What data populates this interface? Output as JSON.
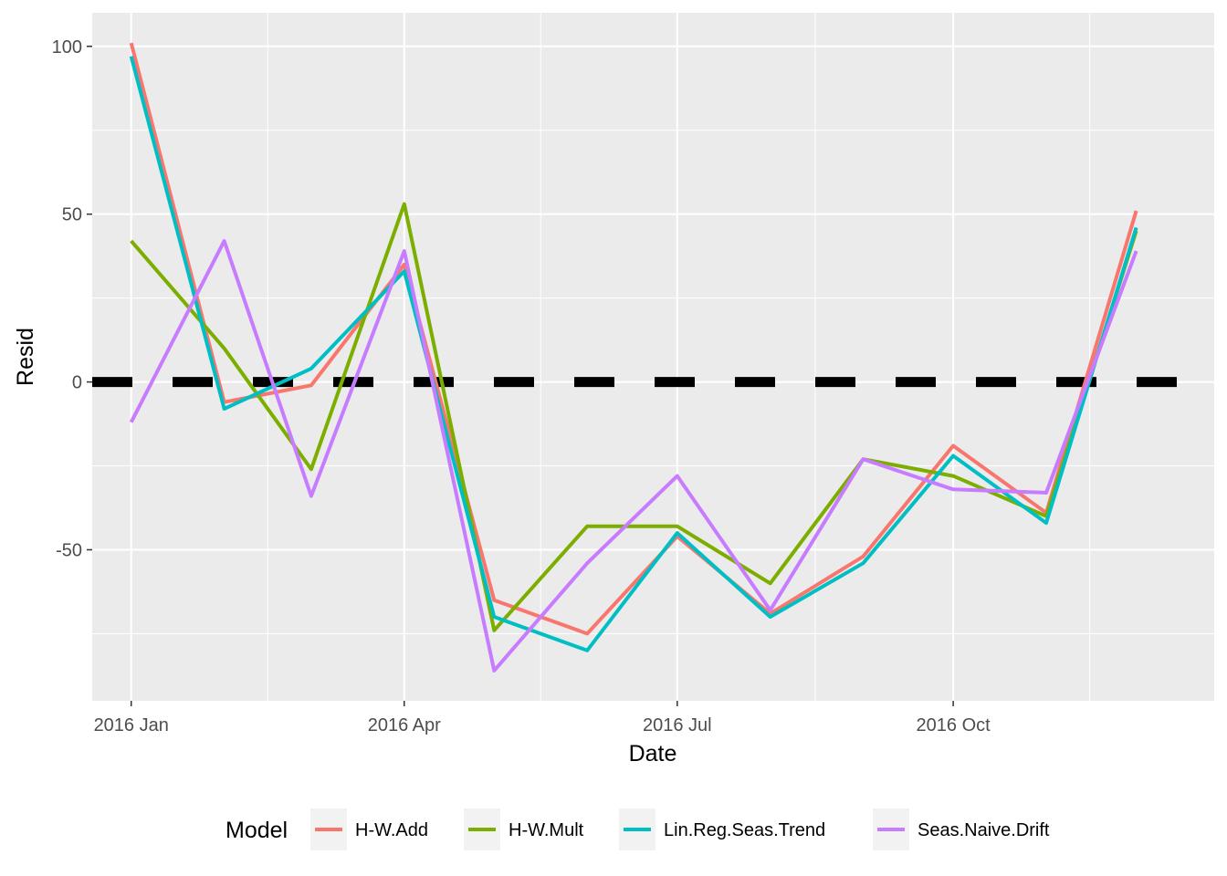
{
  "chart_data": {
    "type": "line",
    "xlabel": "Date",
    "ylabel": "Resid",
    "x": [
      "2016-01",
      "2016-02",
      "2016-03",
      "2016-04",
      "2016-05",
      "2016-06",
      "2016-07",
      "2016-08",
      "2016-09",
      "2016-10",
      "2016-11",
      "2016-12"
    ],
    "xlim": [
      "2015-12-19",
      "2016-12-27"
    ],
    "ylim": [
      -95,
      110
    ],
    "x_ticks": [
      {
        "date": "2016-01",
        "label": "2016 Jan"
      },
      {
        "date": "2016-04",
        "label": "2016 Apr"
      },
      {
        "date": "2016-07",
        "label": "2016 Jul"
      },
      {
        "date": "2016-10",
        "label": "2016 Oct"
      }
    ],
    "y_ticks": [
      100,
      50,
      0,
      -50
    ],
    "y_tick_labels": [
      "100",
      "50",
      "0",
      "-50"
    ],
    "grid": true,
    "reference_line": {
      "y": 0,
      "style": "dashed",
      "color": "#000000"
    },
    "legend": {
      "title": "Model",
      "position": "bottom"
    },
    "series": [
      {
        "name": "H-W.Add",
        "color": "#F8766D",
        "values": [
          101,
          -6,
          -1,
          35,
          -65,
          -75,
          -46,
          -69,
          -52,
          -19,
          -39,
          51
        ]
      },
      {
        "name": "H-W.Mult",
        "color": "#7CAE00",
        "values": [
          42,
          10,
          -26,
          53,
          -74,
          -43,
          -43,
          -60,
          -23,
          -28,
          -40,
          45
        ]
      },
      {
        "name": "Lin.Reg.Seas.Trend",
        "color": "#00BFC4",
        "values": [
          97,
          -8,
          4,
          33,
          -70,
          -80,
          -45,
          -70,
          -54,
          -22,
          -42,
          46
        ]
      },
      {
        "name": "Seas.Naive.Drift",
        "color": "#C77CFF",
        "values": [
          -12,
          42,
          -34,
          39,
          -86,
          -54,
          -28,
          -68,
          -23,
          -32,
          -33,
          39
        ]
      }
    ]
  }
}
